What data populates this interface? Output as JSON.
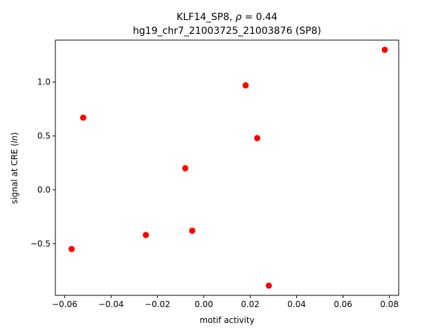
{
  "chart_data": {
    "type": "scatter",
    "title_line1": "KLF14_SP8, ρ = 0.44",
    "title_line2": "hg19_chr7_21003725_21003876 (SP8)",
    "xlabel": "motif activity",
    "ylabel": "signal at CRE (ln)",
    "xlim": [
      -0.064,
      0.084
    ],
    "ylim": [
      -0.98,
      1.39
    ],
    "xticks": [
      -0.06,
      -0.04,
      -0.02,
      0.0,
      0.02,
      0.04,
      0.06,
      0.08
    ],
    "xtick_labels": [
      "−0.06",
      "−0.04",
      "−0.02",
      "0.00",
      "0.02",
      "0.04",
      "0.06",
      "0.08"
    ],
    "yticks": [
      -0.5,
      0.0,
      0.5,
      1.0
    ],
    "ytick_labels": [
      "−0.5",
      "0.0",
      "0.5",
      "1.0"
    ],
    "marker_color": "#ff0000",
    "grid": false,
    "points": [
      {
        "x": -0.057,
        "y": -0.55
      },
      {
        "x": -0.052,
        "y": 0.67
      },
      {
        "x": -0.025,
        "y": -0.42
      },
      {
        "x": -0.008,
        "y": 0.2
      },
      {
        "x": -0.005,
        "y": -0.38
      },
      {
        "x": 0.018,
        "y": 0.97
      },
      {
        "x": 0.023,
        "y": 0.48
      },
      {
        "x": 0.028,
        "y": -0.89
      },
      {
        "x": 0.078,
        "y": 1.3
      }
    ]
  }
}
